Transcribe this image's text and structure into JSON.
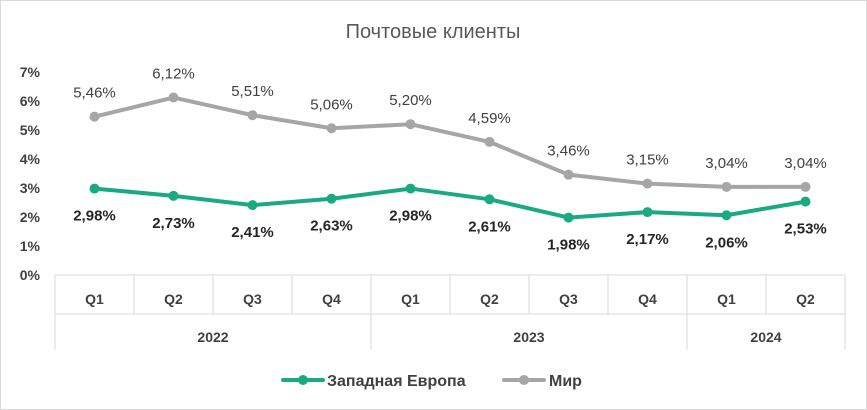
{
  "chart_data": {
    "type": "line",
    "title": "Почтовые клиенты",
    "categories": [
      "Q1",
      "Q2",
      "Q3",
      "Q4",
      "Q1",
      "Q2",
      "Q3",
      "Q4",
      "Q1",
      "Q2"
    ],
    "groups": [
      {
        "label": "2022",
        "count": 4
      },
      {
        "label": "2023",
        "count": 4
      },
      {
        "label": "2024",
        "count": 2
      }
    ],
    "y_ticks": [
      "0%",
      "1%",
      "2%",
      "3%",
      "4%",
      "5%",
      "6%",
      "7%"
    ],
    "ylim": [
      0,
      7
    ],
    "series": [
      {
        "name": "Западная Европа",
        "color": "#1aaa82",
        "values": [
          2.98,
          2.73,
          2.41,
          2.63,
          2.98,
          2.61,
          1.98,
          2.17,
          2.06,
          2.53
        ],
        "labels": [
          "2,98%",
          "2,73%",
          "2,41%",
          "2,63%",
          "2,98%",
          "2,61%",
          "1,98%",
          "2,17%",
          "2,06%",
          "2,53%"
        ]
      },
      {
        "name": "Мир",
        "color": "#a6a6a6",
        "values": [
          5.46,
          6.12,
          5.51,
          5.06,
          5.2,
          4.59,
          3.46,
          3.15,
          3.04,
          3.04
        ],
        "labels": [
          "5,46%",
          "6,12%",
          "5,51%",
          "5,06%",
          "5,20%",
          "4,59%",
          "3,46%",
          "3,15%",
          "3,04%",
          "3,04%"
        ]
      }
    ],
    "legend": "bottom",
    "grid": false
  }
}
